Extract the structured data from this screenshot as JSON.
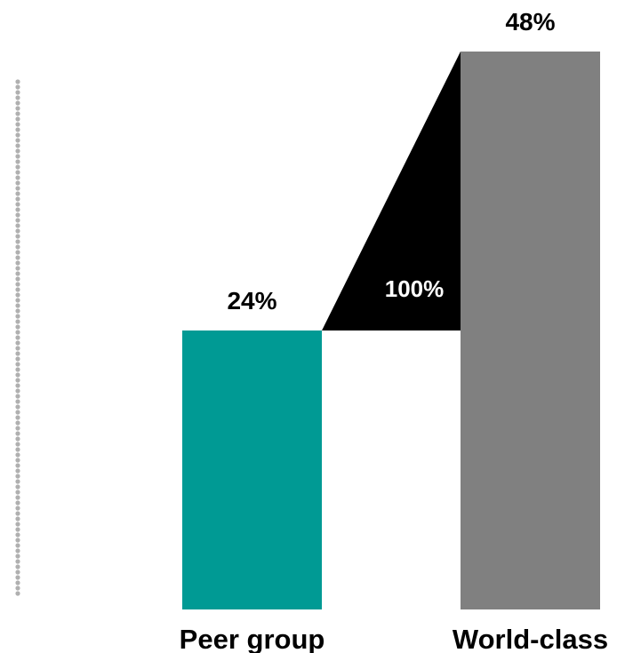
{
  "chart_data": {
    "type": "bar",
    "categories": [
      "Peer group",
      "World-class"
    ],
    "values": [
      24,
      48
    ],
    "value_labels": [
      "24%",
      "48%"
    ],
    "gap": {
      "label": "100%",
      "color": "#000000"
    },
    "ylim": [
      0,
      50
    ],
    "grid": false,
    "legend": "none",
    "colors": {
      "Peer group": "#009a94",
      "World-class": "#808080"
    },
    "axis": {
      "style": "dotted",
      "color": "#b0b0b0"
    }
  }
}
